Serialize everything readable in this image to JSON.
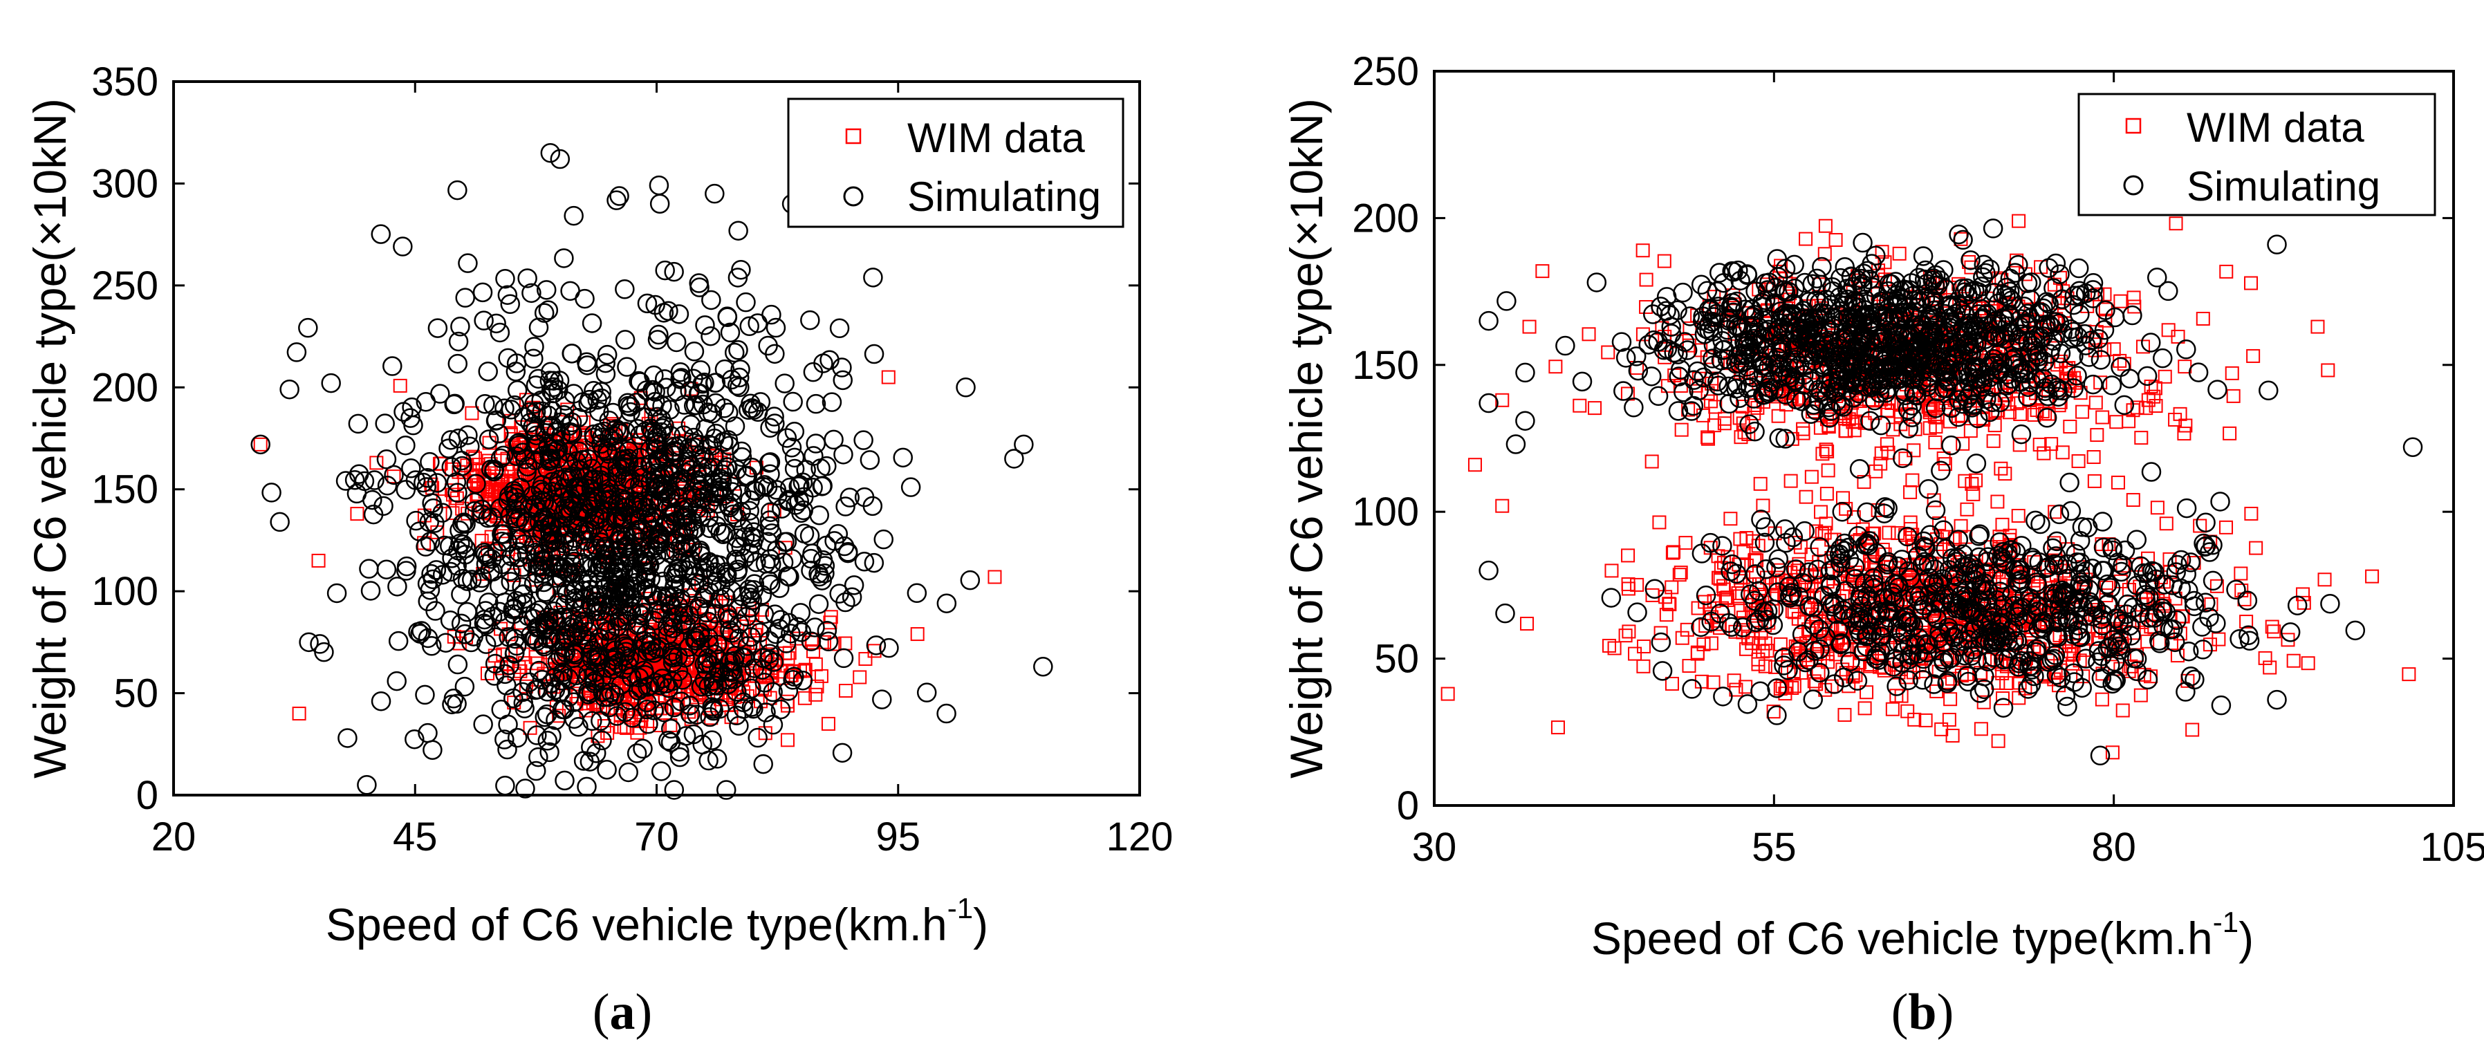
{
  "chart_data": [
    {
      "type": "scatter",
      "panel_label": "a",
      "xlabel": "Speed of C6 vehicle type(km.h",
      "xlabel_sup": "-1",
      "xlabel_close": ")",
      "ylabel": "Weight of C6 vehicle type(×10kN)",
      "xlim": [
        20,
        120
      ],
      "ylim": [
        0,
        350
      ],
      "xticks": [
        20,
        45,
        70,
        95,
        120
      ],
      "yticks": [
        0,
        50,
        100,
        150,
        200,
        250,
        300,
        350
      ],
      "legend_position": "top-right",
      "series": [
        {
          "name": "WIM data",
          "marker": "square",
          "color": "#ff0000",
          "count": 1500,
          "clusters": [
            {
              "x_mean": 62,
              "x_sd": 6,
              "y_mean": 150,
              "y_sd": 15,
              "weight": 0.55
            },
            {
              "x_mean": 70,
              "x_sd": 7,
              "y_mean": 65,
              "y_sd": 14,
              "weight": 0.45
            }
          ],
          "outliers": [
            [
              29,
              172
            ],
            [
              33,
              40
            ],
            [
              35,
              115
            ],
            [
              39,
              138
            ],
            [
              41,
              163
            ],
            [
              94,
              205
            ],
            [
              97,
              79
            ],
            [
              105,
              107
            ]
          ]
        },
        {
          "name": "Simulating",
          "marker": "circle",
          "color": "#000000",
          "count": 1500,
          "clusters": [
            {
              "x_mean": 67,
              "x_sd": 11,
              "y_mean": 125,
              "y_sd": 55,
              "weight": 1.0
            }
          ],
          "outliers": [
            [
              29,
              172
            ],
            [
              31,
              134
            ],
            [
              32,
              199
            ],
            [
              34,
              75
            ],
            [
              38,
              28
            ],
            [
              40,
              5
            ],
            [
              59,
              315
            ],
            [
              60,
              312
            ],
            [
              76,
              295
            ],
            [
              84,
              290
            ],
            [
              100,
              40
            ],
            [
              107,
              165
            ],
            [
              108,
              172
            ],
            [
              110,
              63
            ],
            [
              102,
              200
            ]
          ]
        }
      ]
    },
    {
      "type": "scatter",
      "panel_label": "b",
      "xlabel": "Speed of C6 vehicle type(km.h",
      "xlabel_sup": "-1",
      "xlabel_close": ")",
      "ylabel": "Weight of C6 vehicle type(×10kN)",
      "xlim": [
        30,
        105
      ],
      "ylim": [
        0,
        250
      ],
      "xticks": [
        30,
        55,
        80,
        105
      ],
      "yticks": [
        0,
        50,
        100,
        150,
        200,
        250
      ],
      "legend_position": "top-right",
      "series": [
        {
          "name": "WIM data",
          "marker": "square",
          "color": "#ff0000",
          "count": 1500,
          "clusters": [
            {
              "x_mean": 65,
              "x_sd": 9,
              "y_mean": 150,
              "y_sd": 18,
              "weight": 0.45
            },
            {
              "x_mean": 66,
              "x_sd": 10,
              "y_mean": 65,
              "y_sd": 16,
              "weight": 0.55
            }
          ],
          "outliers": [
            [
              31,
              38
            ],
            [
              33,
              116
            ],
            [
              35,
              102
            ],
            [
              35,
              138
            ],
            [
              37,
              163
            ],
            [
              95,
              163
            ],
            [
              99,
              78
            ],
            [
              94,
              69
            ],
            [
              73,
              199
            ]
          ]
        },
        {
          "name": "Simulating",
          "marker": "circle",
          "color": "#000000",
          "count": 1500,
          "clusters": [
            {
              "x_mean": 63,
              "x_sd": 8,
              "y_mean": 158,
              "y_sd": 13,
              "weight": 0.6
            },
            {
              "x_mean": 70,
              "x_sd": 9,
              "y_mean": 68,
              "y_sd": 15,
              "weight": 0.4
            }
          ],
          "outliers": [
            [
              34,
              137
            ],
            [
              34,
              80
            ],
            [
              34,
              165
            ],
            [
              36,
              123
            ],
            [
              92,
              191
            ],
            [
              102,
              122
            ],
            [
              92,
              36
            ],
            [
              79,
              17
            ],
            [
              93,
              59
            ]
          ]
        }
      ]
    }
  ]
}
